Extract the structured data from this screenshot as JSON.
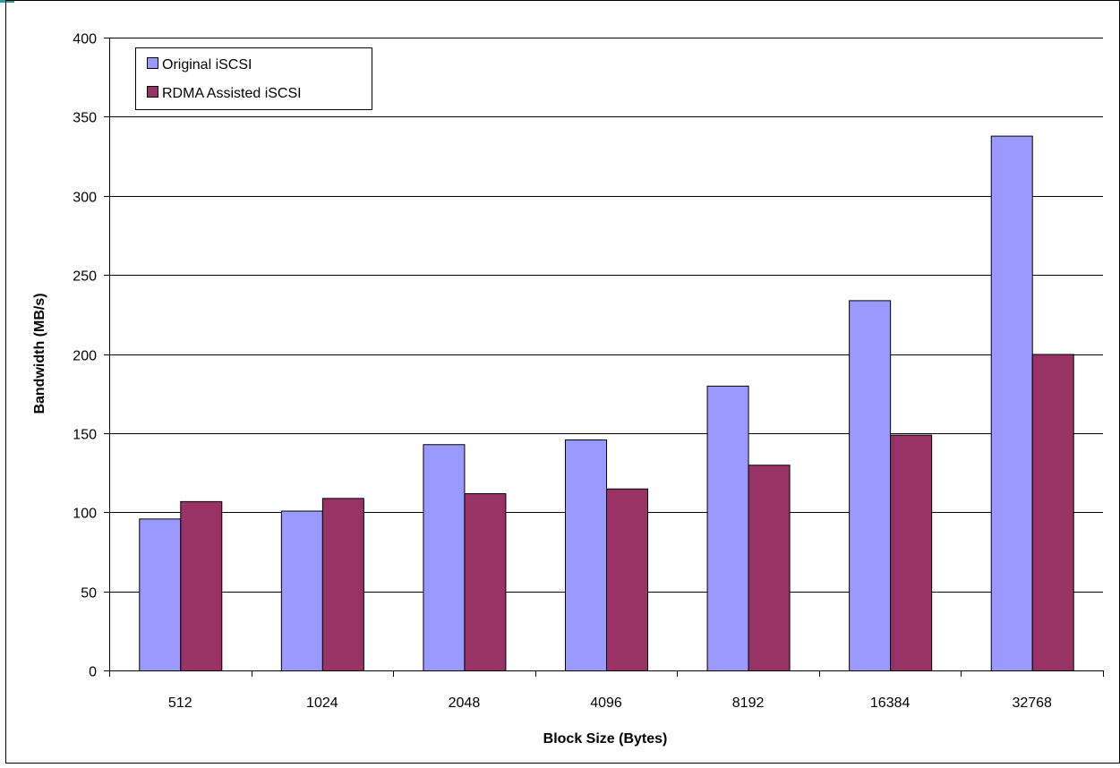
{
  "chart_data": {
    "type": "bar",
    "title": "",
    "xlabel": "Block Size (Bytes)",
    "ylabel": "Bandwidth (MB/s)",
    "categories": [
      "512",
      "1024",
      "2048",
      "4096",
      "8192",
      "16384",
      "32768"
    ],
    "ylim": [
      0,
      400
    ],
    "yticks": [
      0,
      50,
      100,
      150,
      200,
      250,
      300,
      350,
      400
    ],
    "grid": true,
    "legend_position": "top-left",
    "series": [
      {
        "name": "Original iSCSI",
        "color": "#9999ff",
        "values": [
          96,
          101,
          143,
          146,
          180,
          234,
          338
        ]
      },
      {
        "name": "RDMA Assisted iSCSI",
        "color": "#993366",
        "values": [
          107,
          109,
          112,
          115,
          130,
          149,
          200
        ]
      }
    ]
  }
}
